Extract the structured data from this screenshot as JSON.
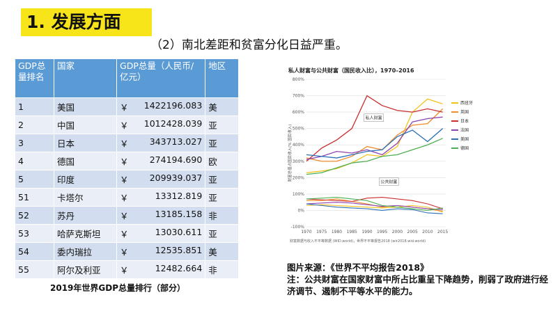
{
  "heading": "1. 发展方面",
  "subtitle": "（2）南北差距和贫富分化日益严重。",
  "table": {
    "headers": [
      "GDP总量排名",
      "国家",
      "GDP总量（人民币/亿元）",
      "地区"
    ],
    "rows": [
      {
        "rank": "1",
        "country": "美国",
        "gdp": "1422196.083",
        "region": "美"
      },
      {
        "rank": "2",
        "country": "中国",
        "gdp": "1012428.039",
        "region": "亚"
      },
      {
        "rank": "3",
        "country": "日本",
        "gdp": "343713.027",
        "region": "亚"
      },
      {
        "rank": "4",
        "country": "德国",
        "gdp": "274194.690",
        "region": "欧"
      },
      {
        "rank": "5",
        "country": "印度",
        "gdp": "209939.037",
        "region": "亚"
      },
      {
        "rank": "51",
        "country": "卡塔尔",
        "gdp": "13312.819",
        "region": "亚"
      },
      {
        "rank": "52",
        "country": "苏丹",
        "gdp": "13185.158",
        "region": "非"
      },
      {
        "rank": "53",
        "country": "哈萨克斯坦",
        "gdp": "13030.611",
        "region": "亚"
      },
      {
        "rank": "54",
        "country": "委内瑞拉",
        "gdp": "12535.851",
        "region": "美"
      },
      {
        "rank": "55",
        "country": "阿尔及利亚",
        "gdp": "12482.664",
        "region": "非"
      }
    ],
    "currency_symbol": "￥",
    "caption": "2019年世界GDP总量排行（部分）"
  },
  "chart_data": {
    "type": "line",
    "title": "私人财富与公共财富（国民收入比），1970–2016",
    "ylabel": "财富总值占国民收入(% 国民收入)",
    "x": [
      1970,
      1975,
      1980,
      1985,
      1990,
      1995,
      2000,
      2005,
      2010,
      2015
    ],
    "xlim": [
      1970,
      2016
    ],
    "ylim": [
      -100,
      800
    ],
    "yticks": [
      "-100%",
      "0%",
      "100%",
      "200%",
      "300%",
      "400%",
      "500%",
      "600%",
      "700%",
      "800%"
    ],
    "annotations": [
      "私人财富",
      "公共财富"
    ],
    "legend_position": "right",
    "series": [
      {
        "name": "西班牙",
        "color": "#f2c21b",
        "private": [
          230,
          240,
          255,
          290,
          340,
          330,
          390,
          600,
          680,
          650
        ],
        "public": [
          30,
          35,
          30,
          25,
          20,
          15,
          20,
          30,
          20,
          -10
        ]
      },
      {
        "name": "英国",
        "color": "#f08c2a",
        "private": [
          320,
          300,
          300,
          330,
          390,
          370,
          460,
          520,
          530,
          620
        ],
        "public": [
          60,
          60,
          70,
          55,
          40,
          20,
          30,
          20,
          10,
          -5
        ]
      },
      {
        "name": "日本",
        "color": "#c92d2d",
        "private": [
          300,
          380,
          430,
          500,
          700,
          640,
          610,
          600,
          620,
          600
        ],
        "public": [
          70,
          65,
          60,
          55,
          75,
          80,
          70,
          60,
          40,
          10
        ]
      },
      {
        "name": "法国",
        "color": "#8e44ad",
        "private": [
          310,
          330,
          360,
          350,
          370,
          340,
          410,
          540,
          560,
          570
        ],
        "public": [
          40,
          45,
          50,
          45,
          35,
          25,
          30,
          20,
          10,
          5
        ]
      },
      {
        "name": "美国",
        "color": "#2a6fb8",
        "private": [
          340,
          330,
          320,
          340,
          360,
          370,
          450,
          490,
          420,
          500
        ],
        "public": [
          40,
          30,
          20,
          15,
          10,
          0,
          10,
          5,
          -15,
          -20
        ]
      },
      {
        "name": "德国",
        "color": "#4caf50",
        "private": [
          220,
          230,
          260,
          290,
          300,
          330,
          340,
          370,
          400,
          440
        ],
        "public": [
          70,
          75,
          80,
          70,
          60,
          30,
          20,
          10,
          0,
          15
        ]
      }
    ]
  },
  "chart_note": "财富数据与收入不平等数据 (WID.world)，世界不平等报告2018 (wir2018.wid.world)",
  "source": {
    "title": "图片来源：《世界不平均报告2018》",
    "note": "注：公共财富在国家财富中所占比重呈下降趋势，削弱了政府进行经济调节、遏制不平等水平的能力。"
  }
}
